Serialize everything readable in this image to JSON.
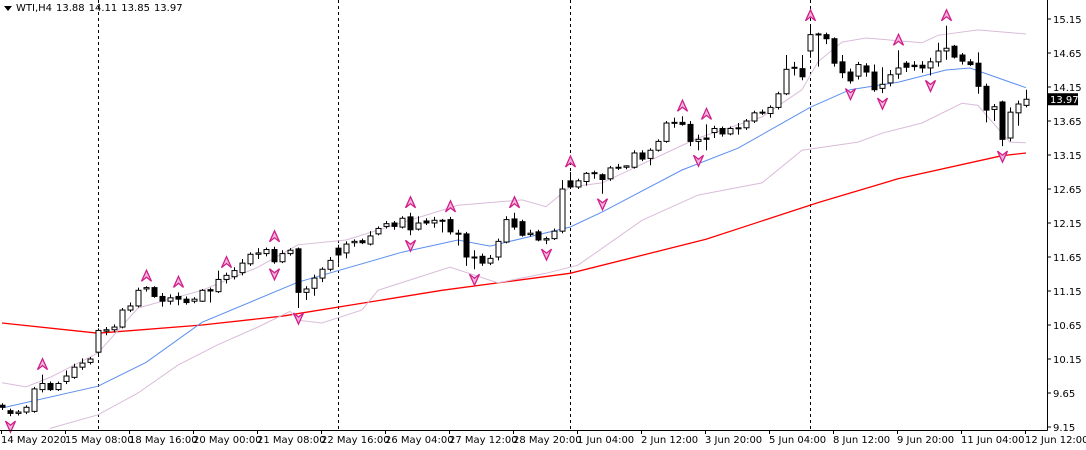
{
  "header": {
    "symbol_timeframe": "WTI,H4",
    "open": "13.88",
    "high": "14.11",
    "low": "13.85",
    "close": "13.97",
    "menu_icon": "triangle-down-icon"
  },
  "chart_data": {
    "type": "candlestick",
    "title": "",
    "price_ticks": [
      "15.15",
      "14.65",
      "14.15",
      "13.65",
      "13.15",
      "12.65",
      "12.15",
      "11.65",
      "11.15",
      "10.65",
      "10.15",
      "9.65",
      "9.15"
    ],
    "ylim": [
      9.15,
      15.15
    ],
    "current_price": "13.97",
    "time_labels": [
      {
        "bar": 0,
        "label": "14 May 2020"
      },
      {
        "bar": 8,
        "label": "15 May 08:00"
      },
      {
        "bar": 16,
        "label": "18 May 16:00"
      },
      {
        "bar": 24,
        "label": "20 May 00:00"
      },
      {
        "bar": 32,
        "label": "21 May 08:00"
      },
      {
        "bar": 40,
        "label": "22 May 16:00"
      },
      {
        "bar": 48,
        "label": "26 May 04:00"
      },
      {
        "bar": 56,
        "label": "27 May 12:00"
      },
      {
        "bar": 64,
        "label": "28 May 20:00"
      },
      {
        "bar": 72,
        "label": "1 Jun 04:00"
      },
      {
        "bar": 80,
        "label": "2 Jun 12:00"
      },
      {
        "bar": 88,
        "label": "3 Jun 20:00"
      },
      {
        "bar": 96,
        "label": "5 Jun 04:00"
      },
      {
        "bar": 104,
        "label": "8 Jun 12:00"
      },
      {
        "bar": 112,
        "label": "9 Jun 20:00"
      },
      {
        "bar": 120,
        "label": "11 Jun 04:00"
      },
      {
        "bar": 128,
        "label": "12 Jun 12:00"
      }
    ],
    "period_separators": [
      12,
      42,
      71,
      101
    ],
    "candles_ohlc": [
      [
        9.47,
        9.5,
        9.4,
        9.44
      ],
      [
        9.39,
        9.42,
        9.31,
        9.35
      ],
      [
        9.35,
        9.4,
        9.32,
        9.37
      ],
      [
        9.37,
        9.47,
        9.34,
        9.44
      ],
      [
        9.38,
        9.74,
        9.36,
        9.71
      ],
      [
        9.7,
        9.92,
        9.66,
        9.79
      ],
      [
        9.79,
        9.82,
        9.68,
        9.7
      ],
      [
        9.7,
        9.82,
        9.68,
        9.79
      ],
      [
        9.82,
        9.98,
        9.78,
        9.9
      ],
      [
        9.88,
        10.08,
        9.86,
        10.03
      ],
      [
        10.03,
        10.16,
        9.99,
        10.09
      ],
      [
        10.1,
        10.18,
        10.07,
        10.15
      ],
      [
        10.25,
        10.6,
        10.2,
        10.57
      ],
      [
        10.56,
        10.62,
        10.5,
        10.58
      ],
      [
        10.58,
        10.66,
        10.54,
        10.62
      ],
      [
        10.62,
        10.9,
        10.6,
        10.87
      ],
      [
        10.87,
        10.98,
        10.84,
        10.93
      ],
      [
        10.93,
        11.2,
        10.91,
        11.16
      ],
      [
        11.18,
        11.22,
        11.14,
        11.2
      ],
      [
        11.2,
        11.22,
        11.05,
        11.07
      ],
      [
        11.07,
        11.12,
        10.92,
        11.0
      ],
      [
        11.0,
        11.1,
        10.95,
        11.05
      ],
      [
        11.07,
        11.13,
        10.94,
        11.03
      ],
      [
        11.03,
        11.07,
        10.95,
        10.98
      ],
      [
        11.0,
        11.06,
        10.97,
        11.03
      ],
      [
        11.0,
        11.18,
        10.99,
        11.16
      ],
      [
        11.17,
        11.2,
        10.98,
        11.15
      ],
      [
        11.14,
        11.45,
        11.12,
        11.32
      ],
      [
        11.32,
        11.42,
        11.26,
        11.38
      ],
      [
        11.36,
        11.5,
        11.32,
        11.45
      ],
      [
        11.42,
        11.62,
        11.38,
        11.56
      ],
      [
        11.55,
        11.72,
        11.52,
        11.69
      ],
      [
        11.69,
        11.78,
        11.62,
        11.71
      ],
      [
        11.7,
        11.79,
        11.66,
        11.76
      ],
      [
        11.76,
        11.8,
        11.55,
        11.58
      ],
      [
        11.58,
        11.75,
        11.56,
        11.7
      ],
      [
        11.7,
        11.78,
        11.67,
        11.75
      ],
      [
        11.77,
        11.79,
        10.9,
        11.13
      ],
      [
        11.13,
        11.22,
        11.02,
        11.18
      ],
      [
        11.19,
        11.39,
        11.08,
        11.34
      ],
      [
        11.34,
        11.5,
        11.28,
        11.47
      ],
      [
        11.47,
        11.65,
        11.44,
        11.6
      ],
      [
        11.78,
        11.83,
        11.55,
        11.68
      ],
      [
        11.71,
        11.88,
        11.63,
        11.84
      ],
      [
        11.86,
        11.91,
        11.8,
        11.88
      ],
      [
        11.89,
        11.92,
        11.84,
        11.86
      ],
      [
        11.84,
        12.03,
        11.82,
        11.96
      ],
      [
        11.99,
        12.1,
        11.97,
        12.07
      ],
      [
        12.1,
        12.18,
        12.07,
        12.14
      ],
      [
        12.15,
        12.18,
        12.05,
        12.1
      ],
      [
        12.09,
        12.25,
        12.07,
        12.22
      ],
      [
        12.24,
        12.3,
        11.97,
        12.05
      ],
      [
        12.06,
        12.25,
        12.04,
        12.15
      ],
      [
        12.18,
        12.22,
        12.12,
        12.15
      ],
      [
        12.15,
        12.24,
        12.08,
        12.19
      ],
      [
        12.18,
        12.21,
        12.01,
        12.19
      ],
      [
        12.2,
        12.24,
        11.98,
        12.02
      ],
      [
        12.0,
        12.05,
        11.82,
        12.0
      ],
      [
        11.99,
        12.02,
        11.52,
        11.65
      ],
      [
        11.65,
        11.75,
        11.47,
        11.65
      ],
      [
        11.66,
        11.7,
        11.52,
        11.56
      ],
      [
        11.56,
        11.68,
        11.53,
        11.63
      ],
      [
        11.65,
        11.92,
        11.6,
        11.88
      ],
      [
        11.87,
        12.25,
        11.85,
        12.2
      ],
      [
        12.21,
        12.3,
        12.05,
        12.09
      ],
      [
        12.17,
        12.2,
        11.95,
        11.97
      ],
      [
        11.98,
        12.05,
        11.95,
        12.0
      ],
      [
        12.02,
        12.05,
        11.88,
        11.9
      ],
      [
        11.9,
        11.95,
        11.84,
        11.92
      ],
      [
        11.92,
        12.07,
        11.9,
        12.03
      ],
      [
        12.03,
        12.78,
        12.0,
        12.65
      ],
      [
        12.77,
        12.9,
        12.66,
        12.68
      ],
      [
        12.68,
        12.8,
        12.65,
        12.77
      ],
      [
        12.76,
        12.9,
        12.7,
        12.88
      ],
      [
        12.88,
        12.92,
        12.8,
        12.89
      ],
      [
        12.86,
        12.88,
        12.58,
        12.79
      ],
      [
        12.8,
        12.99,
        12.77,
        12.96
      ],
      [
        12.97,
        13.02,
        12.93,
        12.97
      ],
      [
        12.97,
        13.0,
        12.94,
        12.99
      ],
      [
        12.97,
        13.22,
        12.95,
        13.18
      ],
      [
        13.18,
        13.22,
        13.06,
        13.09
      ],
      [
        13.1,
        13.25,
        13.0,
        13.22
      ],
      [
        13.22,
        13.38,
        13.2,
        13.35
      ],
      [
        13.35,
        13.65,
        13.33,
        13.62
      ],
      [
        13.62,
        13.7,
        13.55,
        13.63
      ],
      [
        13.63,
        13.72,
        13.58,
        13.6
      ],
      [
        13.6,
        13.65,
        13.28,
        13.35
      ],
      [
        13.35,
        13.45,
        13.22,
        13.38
      ],
      [
        13.4,
        13.6,
        13.22,
        13.38
      ],
      [
        13.48,
        13.58,
        13.4,
        13.54
      ],
      [
        13.54,
        13.57,
        13.42,
        13.46
      ],
      [
        13.46,
        13.57,
        13.44,
        13.54
      ],
      [
        13.55,
        13.62,
        13.45,
        13.55
      ],
      [
        13.55,
        13.68,
        13.52,
        13.65
      ],
      [
        13.65,
        13.8,
        13.62,
        13.77
      ],
      [
        13.78,
        13.82,
        13.74,
        13.78
      ],
      [
        13.76,
        13.88,
        13.7,
        13.85
      ],
      [
        13.85,
        14.08,
        13.82,
        14.05
      ],
      [
        14.05,
        14.62,
        14.03,
        14.41
      ],
      [
        14.44,
        14.52,
        14.32,
        14.44
      ],
      [
        14.42,
        14.62,
        14.25,
        14.3
      ],
      [
        14.68,
        15.05,
        14.58,
        14.92
      ],
      [
        14.93,
        14.95,
        14.45,
        14.93
      ],
      [
        14.92,
        14.95,
        14.78,
        14.86
      ],
      [
        14.86,
        14.88,
        14.45,
        14.5
      ],
      [
        14.52,
        14.62,
        14.28,
        14.36
      ],
      [
        14.37,
        14.42,
        14.2,
        14.24
      ],
      [
        14.31,
        14.52,
        14.26,
        14.48
      ],
      [
        14.46,
        14.5,
        14.3,
        14.37
      ],
      [
        14.37,
        14.48,
        14.08,
        14.11
      ],
      [
        14.13,
        14.44,
        14.06,
        14.19
      ],
      [
        14.21,
        14.4,
        14.16,
        14.33
      ],
      [
        14.34,
        14.69,
        14.27,
        14.43
      ],
      [
        14.5,
        14.53,
        14.37,
        14.44
      ],
      [
        14.47,
        14.53,
        14.39,
        14.45
      ],
      [
        14.47,
        14.53,
        14.36,
        14.43
      ],
      [
        14.43,
        14.58,
        14.32,
        14.52
      ],
      [
        14.52,
        14.8,
        14.45,
        14.68
      ],
      [
        14.68,
        15.05,
        14.55,
        14.72
      ],
      [
        14.75,
        14.77,
        14.57,
        14.59
      ],
      [
        14.62,
        14.65,
        14.48,
        14.53
      ],
      [
        14.52,
        14.56,
        14.46,
        14.48
      ],
      [
        14.5,
        14.66,
        14.05,
        14.16
      ],
      [
        14.16,
        14.2,
        13.63,
        13.81
      ],
      [
        13.82,
        13.9,
        13.65,
        13.86
      ],
      [
        13.93,
        13.95,
        13.28,
        13.38
      ],
      [
        13.4,
        13.85,
        13.35,
        13.78
      ],
      [
        13.77,
        13.95,
        13.58,
        13.9
      ],
      [
        13.88,
        14.11,
        13.85,
        13.97
      ]
    ],
    "indicators": {
      "slow_ma": {
        "color": "#ff0000",
        "points": [
          [
            0,
            10.68
          ],
          [
            12,
            10.53
          ],
          [
            25,
            10.65
          ],
          [
            35,
            10.78
          ],
          [
            55,
            11.16
          ],
          [
            71,
            11.41
          ],
          [
            88,
            11.91
          ],
          [
            102,
            12.45
          ],
          [
            112,
            12.8
          ],
          [
            125,
            13.14
          ],
          [
            128,
            13.18
          ]
        ]
      },
      "bollinger_middle": {
        "color": "#5b8ff0",
        "points": [
          [
            0,
            9.43
          ],
          [
            12,
            9.75
          ],
          [
            18,
            10.1
          ],
          [
            25,
            10.69
          ],
          [
            37,
            11.28
          ],
          [
            50,
            11.72
          ],
          [
            57,
            11.9
          ],
          [
            61,
            11.81
          ],
          [
            71,
            12.09
          ],
          [
            75,
            12.31
          ],
          [
            85,
            12.93
          ],
          [
            92,
            13.25
          ],
          [
            101,
            13.85
          ],
          [
            106,
            14.11
          ],
          [
            112,
            14.22
          ],
          [
            118,
            14.4
          ],
          [
            121,
            14.43
          ],
          [
            128,
            14.14
          ]
        ]
      },
      "bollinger_upper": {
        "color": "#d9bcd9",
        "points": [
          [
            0,
            9.8
          ],
          [
            3,
            9.74
          ],
          [
            6,
            9.88
          ],
          [
            12,
            10.24
          ],
          [
            17,
            10.9
          ],
          [
            25,
            11.16
          ],
          [
            32,
            11.5
          ],
          [
            37,
            11.83
          ],
          [
            43,
            11.9
          ],
          [
            57,
            12.41
          ],
          [
            65,
            12.49
          ],
          [
            68,
            12.39
          ],
          [
            71,
            12.68
          ],
          [
            75,
            12.74
          ],
          [
            87,
            13.4
          ],
          [
            95,
            13.71
          ],
          [
            100,
            14.11
          ],
          [
            102,
            14.52
          ],
          [
            105,
            14.81
          ],
          [
            108,
            14.87
          ],
          [
            115,
            14.8
          ],
          [
            117,
            14.91
          ],
          [
            122,
            14.99
          ],
          [
            128,
            14.93
          ]
        ]
      },
      "bollinger_lower": {
        "color": "#d9bcd9",
        "points": [
          [
            6,
            9.13
          ],
          [
            12,
            9.33
          ],
          [
            17,
            9.65
          ],
          [
            22,
            10.06
          ],
          [
            27,
            10.36
          ],
          [
            32,
            10.62
          ],
          [
            36,
            10.85
          ],
          [
            37,
            10.72
          ],
          [
            40,
            10.68
          ],
          [
            45,
            10.87
          ],
          [
            47,
            11.16
          ],
          [
            56,
            11.5
          ],
          [
            62,
            11.27
          ],
          [
            68,
            11.41
          ],
          [
            72,
            11.53
          ],
          [
            80,
            12.19
          ],
          [
            87,
            12.56
          ],
          [
            95,
            12.74
          ],
          [
            100,
            13.22
          ],
          [
            107,
            13.34
          ],
          [
            110,
            13.47
          ],
          [
            115,
            13.62
          ],
          [
            120,
            13.91
          ],
          [
            122,
            13.88
          ],
          [
            125,
            13.47
          ],
          [
            126,
            13.34
          ],
          [
            128,
            13.33
          ]
        ]
      }
    },
    "fractals": {
      "color": "#d0208c",
      "up": [
        5,
        18,
        22,
        28,
        34,
        51,
        56,
        64,
        71,
        85,
        88,
        101,
        112,
        118
      ],
      "down": [
        1,
        34,
        37,
        51,
        59,
        68,
        75,
        87,
        106,
        110,
        116,
        125
      ]
    },
    "colors": {
      "bull_body": "#ffffff",
      "bear_body": "#000000",
      "wick": "#000000",
      "separator": "#000000",
      "price_label_bg": "#000000",
      "price_label_text": "#ffffff"
    }
  }
}
